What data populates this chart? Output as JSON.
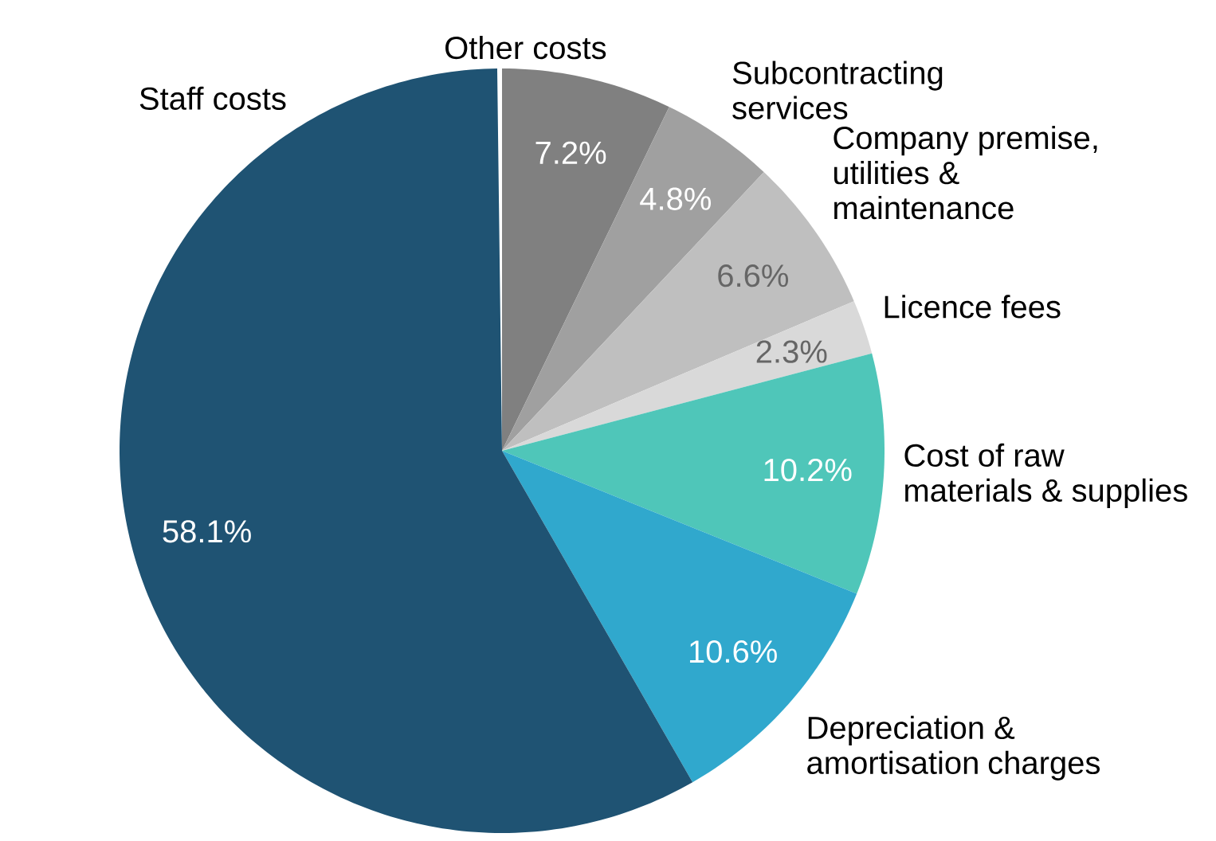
{
  "chart_data": {
    "type": "pie",
    "categories": [
      "Other costs",
      "Subcontracting services",
      "Company premise, utilities & maintenance",
      "Licence fees",
      "Cost of raw materials & supplies",
      "Depreciation & amortisation charges",
      "Staff costs"
    ],
    "values": [
      7.2,
      4.8,
      6.6,
      2.3,
      10.2,
      10.6,
      58.1
    ],
    "value_labels": [
      "7.2%",
      "4.8%",
      "6.6%",
      "2.3%",
      "10.2%",
      "10.6%",
      "58.1%"
    ],
    "colors": [
      "#808080",
      "#a0a0a0",
      "#bfbfbf",
      "#d9d9d9",
      "#4fc6b9",
      "#30a8cd",
      "#1f5373"
    ]
  }
}
